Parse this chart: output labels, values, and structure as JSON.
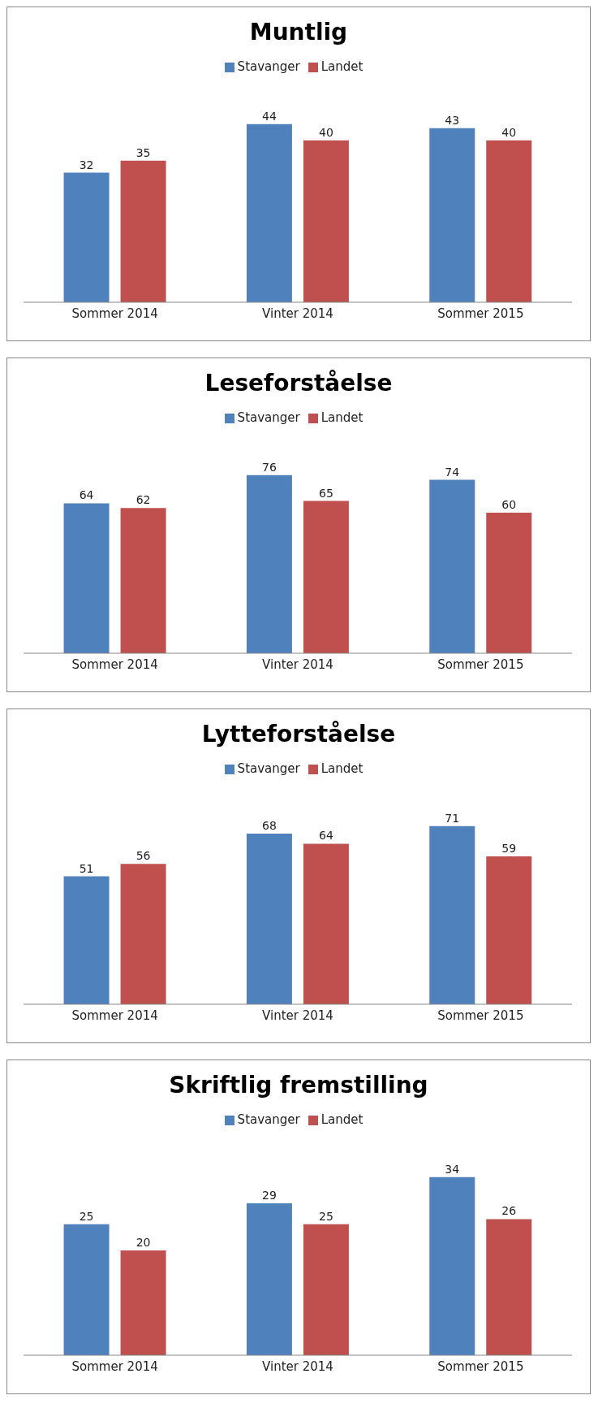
{
  "chart_data": [
    {
      "type": "bar",
      "title": "Muntlig",
      "categories": [
        "Sommer 2014",
        "Vinter 2014",
        "Sommer 2015"
      ],
      "series": [
        {
          "name": "Stavanger",
          "color": "#4f81bd",
          "values": [
            32,
            44,
            43
          ]
        },
        {
          "name": "Landet",
          "color": "#c0504d",
          "values": [
            35,
            40,
            40
          ]
        }
      ],
      "data_labels": true,
      "legend": "top"
    },
    {
      "type": "bar",
      "title": "Leseforståelse",
      "categories": [
        "Sommer 2014",
        "Vinter 2014",
        "Sommer 2015"
      ],
      "series": [
        {
          "name": "Stavanger",
          "color": "#4f81bd",
          "values": [
            64,
            76,
            74
          ]
        },
        {
          "name": "Landet",
          "color": "#c0504d",
          "values": [
            62,
            65,
            60
          ]
        }
      ],
      "data_labels": true,
      "legend": "top"
    },
    {
      "type": "bar",
      "title": "Lytteforståelse",
      "categories": [
        "Sommer 2014",
        "Vinter 2014",
        "Sommer 2015"
      ],
      "series": [
        {
          "name": "Stavanger",
          "color": "#4f81bd",
          "values": [
            51,
            68,
            71
          ]
        },
        {
          "name": "Landet",
          "color": "#c0504d",
          "values": [
            56,
            64,
            59
          ]
        }
      ],
      "data_labels": true,
      "legend": "top"
    },
    {
      "type": "bar",
      "title": "Skriftlig fremstilling",
      "categories": [
        "Sommer 2014",
        "Vinter 2014",
        "Sommer 2015"
      ],
      "series": [
        {
          "name": "Stavanger",
          "color": "#4f81bd",
          "values": [
            25,
            29,
            34
          ]
        },
        {
          "name": "Landet",
          "color": "#c0504d",
          "values": [
            20,
            25,
            26
          ]
        }
      ],
      "data_labels": true,
      "legend": "top"
    }
  ]
}
